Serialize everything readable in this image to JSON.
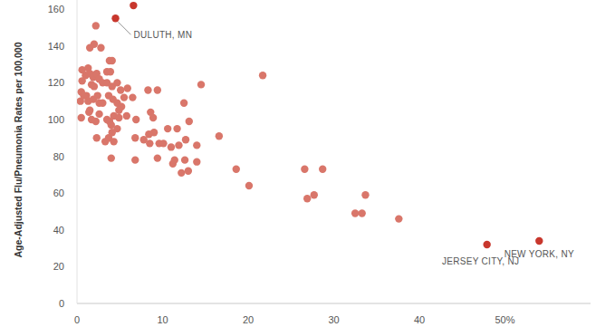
{
  "chart_data": {
    "type": "scatter",
    "y_label": "Age-Adjusted Flu/Pneumonia Rates per 100,000",
    "xlim": [
      0,
      60
    ],
    "ylim": [
      0,
      165
    ],
    "xticks": [
      0,
      10,
      20,
      30,
      40,
      {
        "value": 50,
        "label": "50%"
      }
    ],
    "yticks": [
      0,
      20,
      40,
      60,
      80,
      100,
      120,
      140,
      160
    ],
    "grid": false,
    "series": [
      {
        "color": "#d9766a",
        "marker": "circle",
        "x": [
          2.2,
          1.5,
          2.0,
          2.8,
          3.8,
          4.1,
          3.5,
          3.9,
          0.6,
          1.3,
          1.0,
          1.5,
          1.9,
          2.3,
          2.6,
          0.6,
          1.7,
          2.0,
          3.0,
          3.5,
          4.1,
          4.7,
          5.9,
          5.1,
          0.5,
          1.1,
          0.4,
          0.8,
          1.3,
          1.9,
          2.4,
          2.6,
          3.0,
          3.7,
          4.2,
          4.7,
          5.2,
          5.5,
          6.5,
          0.5,
          1.4,
          1.7,
          2.2,
          1.5,
          2.6,
          3.5,
          3.8,
          4.3,
          4.9,
          4.0,
          4.7,
          5.8,
          4.9,
          2.3,
          3.3,
          3.7,
          4.3,
          4.1,
          4.0,
          6.9,
          6.8,
          8.3,
          8.6,
          8.9,
          9.4,
          9.0,
          8.4,
          7.8,
          8.5,
          9.6,
          6.8,
          9.4,
          10.1,
          10.6,
          11.0,
          11.7,
          11.2,
          11.4,
          12.2,
          12.6,
          11.9,
          12.7,
          12.5,
          13.1,
          13.0,
          14.0,
          14.0,
          14.5,
          16.6,
          18.6,
          20.1,
          21.7,
          26.6,
          26.9,
          27.7,
          28.7,
          32.5,
          33.3,
          33.7,
          37.6
        ],
        "values": [
          151,
          139,
          141,
          139,
          132,
          132,
          126,
          126,
          127,
          128,
          124,
          125,
          123,
          125,
          122,
          121,
          119,
          118,
          120,
          120,
          118,
          120,
          117,
          116,
          115,
          113,
          110,
          113,
          110,
          111,
          113,
          109,
          109,
          113,
          111,
          109,
          107,
          112,
          112,
          101,
          104,
          100,
          99,
          105,
          103,
          100,
          99,
          102,
          101,
          97,
          95,
          102,
          105,
          90,
          88,
          90,
          88,
          93,
          79,
          100,
          90,
          116,
          104,
          101,
          116,
          93,
          92,
          89,
          87,
          87,
          78,
          79,
          87,
          95,
          85,
          95,
          76,
          78,
          71,
          78,
          86,
          89,
          109,
          99,
          72,
          86,
          77,
          119,
          91,
          73,
          64,
          124,
          73,
          57,
          59,
          73,
          49,
          49,
          59,
          46
        ]
      },
      {
        "color": "#c8372d",
        "marker": "circle",
        "x": [
          6.6,
          4.5,
          47.9,
          54.0
        ],
        "values": [
          162,
          155,
          32,
          34
        ]
      }
    ],
    "annotations": [
      {
        "text": "DULUTH, MN",
        "x": 4.5,
        "y": 155
      },
      {
        "text": "JERSEY CITY, NJ",
        "x": 47.9,
        "y": 32
      },
      {
        "text": "NEW YORK, NY",
        "x": 54.0,
        "y": 34
      }
    ]
  }
}
